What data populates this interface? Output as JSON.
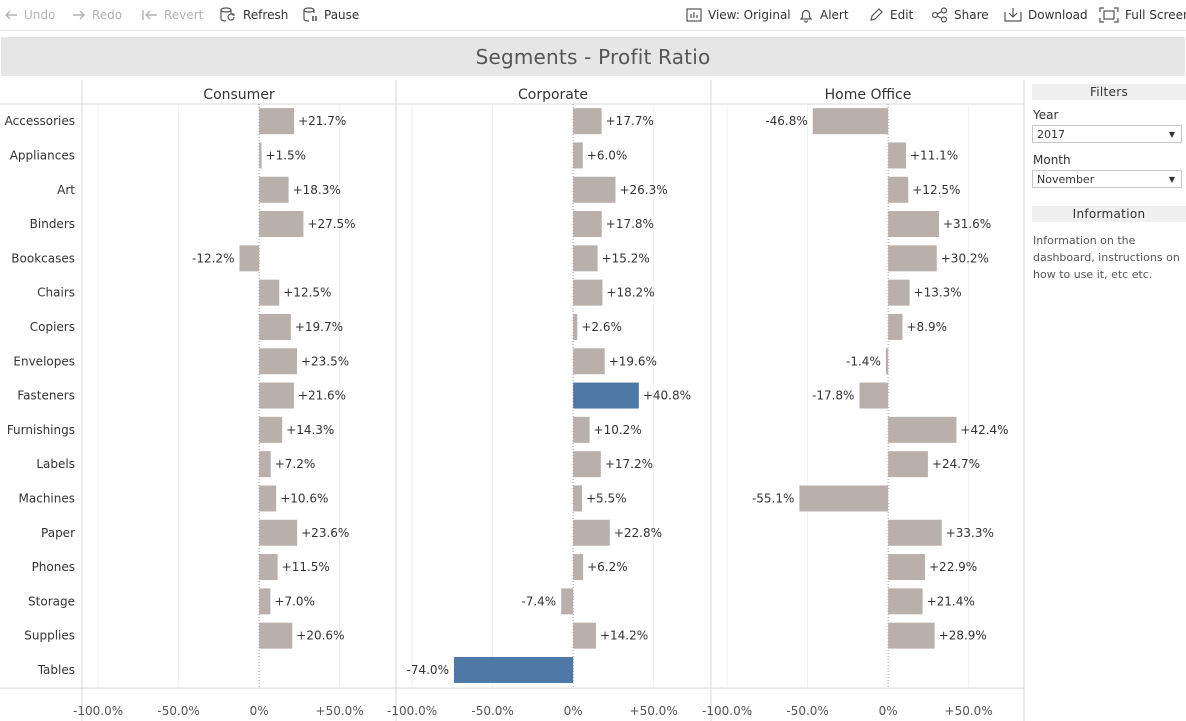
{
  "toolbar": {
    "undo": "Undo",
    "redo": "Redo",
    "revert": "Revert",
    "refresh": "Refresh",
    "pause": "Pause",
    "view": "View: Original",
    "alert": "Alert",
    "edit": "Edit",
    "share": "Share",
    "download": "Download",
    "fullscreen": "Full Screen"
  },
  "dashboard": {
    "title": "Segments - Profit Ratio"
  },
  "filters": {
    "header": "Filters",
    "year_label": "Year",
    "year_value": "2017",
    "month_label": "Month",
    "month_value": "November",
    "info_header": "Information",
    "info_text": "Information on the dashboard, instructions on how to use it, etc etc."
  },
  "colors": {
    "bar_default": "#b9afab",
    "bar_highlight": "#4e79a7",
    "title_bg": "#e6e6e6"
  },
  "chart_data": {
    "type": "bar",
    "orientation": "horizontal",
    "panels": [
      "Consumer",
      "Corporate",
      "Home Office"
    ],
    "categories": [
      "Accessories",
      "Appliances",
      "Art",
      "Binders",
      "Bookcases",
      "Chairs",
      "Copiers",
      "Envelopes",
      "Fasteners",
      "Furnishings",
      "Labels",
      "Machines",
      "Paper",
      "Phones",
      "Storage",
      "Supplies",
      "Tables"
    ],
    "series": [
      {
        "name": "Consumer",
        "values": [
          21.7,
          1.5,
          18.3,
          27.5,
          -12.2,
          12.5,
          19.7,
          23.5,
          21.6,
          14.3,
          7.2,
          10.6,
          23.6,
          11.5,
          7.0,
          20.6,
          null
        ],
        "labels": [
          "+21.7%",
          "+1.5%",
          "+18.3%",
          "+27.5%",
          "-12.2%",
          "+12.5%",
          "+19.7%",
          "+23.5%",
          "+21.6%",
          "+14.3%",
          "+7.2%",
          "+10.6%",
          "+23.6%",
          "+11.5%",
          "+7.0%",
          "+20.6%",
          ""
        ]
      },
      {
        "name": "Corporate",
        "values": [
          17.7,
          6.0,
          26.3,
          17.8,
          15.2,
          18.2,
          2.6,
          19.6,
          40.8,
          10.2,
          17.2,
          5.5,
          22.8,
          6.2,
          -7.4,
          14.2,
          -74.0
        ],
        "labels": [
          "+17.7%",
          "+6.0%",
          "+26.3%",
          "+17.8%",
          "+15.2%",
          "+18.2%",
          "+2.6%",
          "+19.6%",
          "+40.8%",
          "+10.2%",
          "+17.2%",
          "+5.5%",
          "+22.8%",
          "+6.2%",
          "-7.4%",
          "+14.2%",
          "-74.0%"
        ],
        "highlighted": [
          false,
          false,
          false,
          false,
          false,
          false,
          false,
          false,
          true,
          false,
          false,
          false,
          false,
          false,
          false,
          false,
          true
        ]
      },
      {
        "name": "Home Office",
        "values": [
          -46.8,
          11.1,
          12.5,
          31.6,
          30.2,
          13.3,
          8.9,
          -1.4,
          -17.8,
          42.4,
          24.7,
          -55.1,
          33.3,
          22.9,
          21.4,
          28.9,
          null
        ],
        "labels": [
          "-46.8%",
          "+11.1%",
          "+12.5%",
          "+31.6%",
          "+30.2%",
          "+13.3%",
          "+8.9%",
          "-1.4%",
          "-17.8%",
          "+42.4%",
          "+24.7%",
          "-55.1%",
          "+33.3%",
          "+22.9%",
          "+21.4%",
          "+28.9%",
          ""
        ]
      }
    ],
    "xlim": [
      -110,
      85
    ],
    "xticks": [
      -100,
      -50,
      0,
      50
    ],
    "xtick_labels": [
      "-100.0%",
      "-50.0%",
      "0%",
      "+50.0%"
    ],
    "grid": true,
    "legend": "none"
  }
}
